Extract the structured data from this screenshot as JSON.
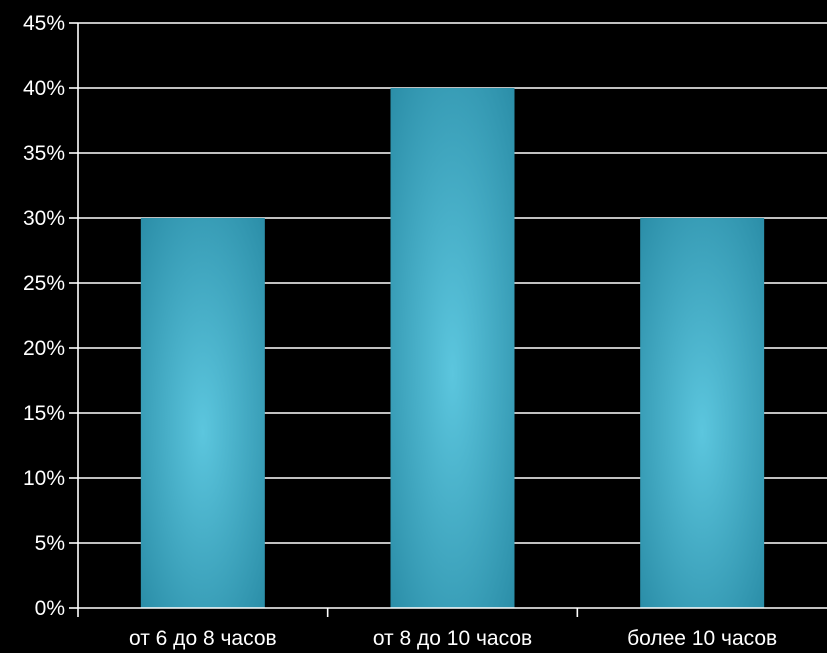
{
  "chart_data": {
    "type": "bar",
    "categories": [
      "от 6 до 8 часов",
      "от 8 до 10 часов",
      "более 10 часов"
    ],
    "values": [
      30,
      40,
      30
    ],
    "value_unit": "%",
    "ylim": [
      0,
      45
    ],
    "y_ticks": [
      "0%",
      "5%",
      "10%",
      "15%",
      "20%",
      "25%",
      "30%",
      "35%",
      "40%",
      "45%"
    ],
    "grid": true,
    "legend": "none",
    "bar_color": "#3aa8c2",
    "bar_highlight_color": "#5cc6de",
    "background_color": "#000000",
    "text_color": "#ffffff",
    "axis_color": "#ffffff"
  }
}
